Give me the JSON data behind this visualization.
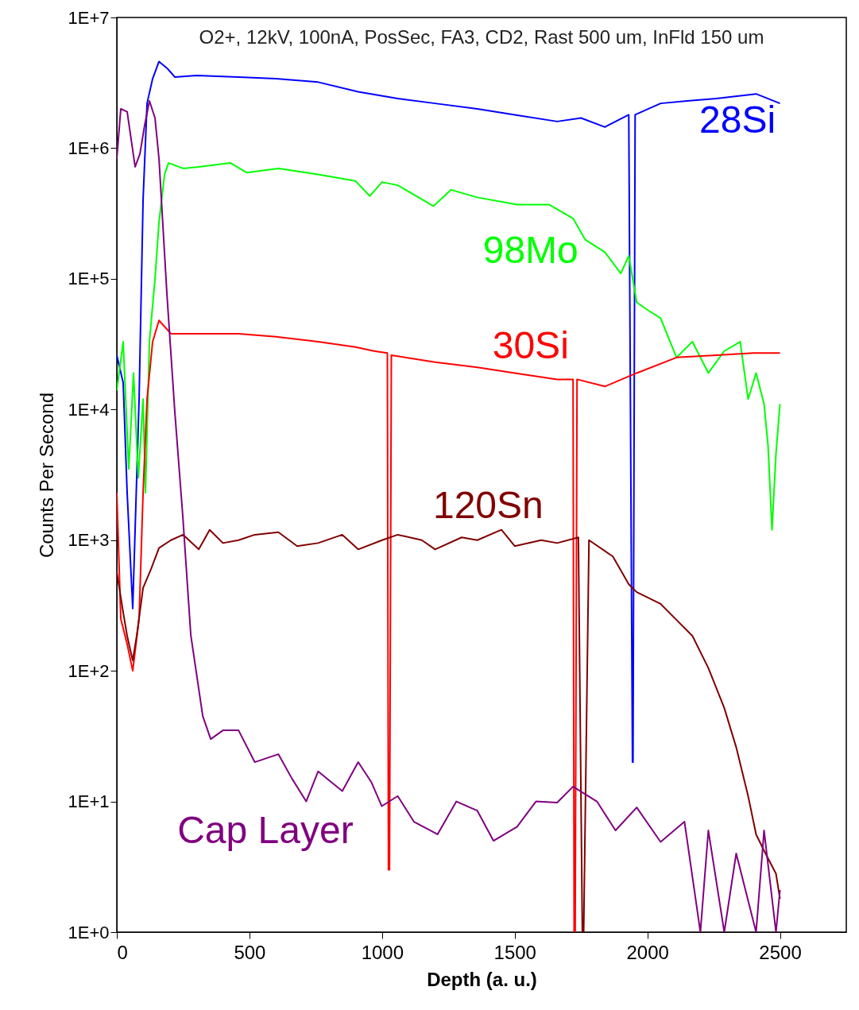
{
  "chart_data": {
    "type": "line",
    "xlabel": "Depth (a. u.)",
    "ylabel": "Counts Per Second",
    "annotations": [
      "O2+, 12kV, 100nA, PosSec, FA3, CD2, Rast 500 um, InFld 150 um"
    ],
    "xlim": [
      0,
      2750
    ],
    "xticks": [
      0,
      500,
      1000,
      1500,
      2000,
      2500
    ],
    "ylim": [
      1,
      10000000
    ],
    "yticks": [
      {
        "value": 1,
        "label": "1E+0"
      },
      {
        "value": 10,
        "label": "1E+1"
      },
      {
        "value": 100,
        "label": "1E+2"
      },
      {
        "value": 1000,
        "label": "1E+3"
      },
      {
        "value": 10000,
        "label": "1E+4"
      },
      {
        "value": 100000,
        "label": "1E+5"
      },
      {
        "value": 1000000,
        "label": "1E+6"
      },
      {
        "value": 10000000,
        "label": "1E+7"
      }
    ],
    "log": "y",
    "grid": false,
    "marker": "none",
    "line_style": "solid",
    "series": [
      {
        "name": "28Si",
        "color": "#0000ff",
        "x": [
          0,
          24,
          39,
          60,
          84,
          99,
          114,
          135,
          159,
          189,
          219,
          300,
          459,
          600,
          759,
          910,
          1059,
          1200,
          1359,
          1500,
          1660,
          1750,
          1840,
          1930,
          1944,
          1946,
          1954,
          2050,
          2150,
          2260,
          2410,
          2500
        ],
        "values": [
          26000,
          16000,
          2300,
          300,
          12000,
          400000,
          2200000,
          3400000,
          4600000,
          4100000,
          3500000,
          3600000,
          3500000,
          3400000,
          3200000,
          2700000,
          2400000,
          2200000,
          2000000,
          1800000,
          1600000,
          1700000,
          1450000,
          1800000,
          20,
          20,
          1800000,
          2200000,
          2300000,
          2400000,
          2600000,
          2200000
        ]
      },
      {
        "name": "98Mo",
        "color": "#00ff00",
        "x": [
          0,
          24,
          45,
          63,
          81,
          99,
          108,
          123,
          144,
          159,
          180,
          195,
          250,
          309,
          429,
          489,
          609,
          759,
          900,
          954,
          1000,
          1059,
          1194,
          1260,
          1359,
          1509,
          1629,
          1720,
          1765,
          1840,
          1900,
          1930,
          1960,
          2005,
          2050,
          2110,
          2170,
          2230,
          2290,
          2350,
          2380,
          2410,
          2440,
          2455,
          2470,
          2485,
          2500
        ],
        "values": [
          14000,
          33000,
          3500,
          19000,
          3000,
          12000,
          2300,
          33000,
          100000,
          270000,
          630000,
          770000,
          700000,
          720000,
          770000,
          650000,
          700000,
          630000,
          560000,
          430000,
          550000,
          520000,
          360000,
          480000,
          420000,
          370000,
          370000,
          290000,
          200000,
          160000,
          110000,
          150000,
          66000,
          57000,
          50000,
          25000,
          33000,
          19000,
          28000,
          33000,
          12000,
          19000,
          11000,
          5300,
          1200,
          4600,
          11000
        ]
      },
      {
        "name": "30Si",
        "color": "#ff0000",
        "x": [
          0,
          15,
          39,
          60,
          84,
          99,
          114,
          135,
          159,
          204,
          300,
          459,
          600,
          759,
          900,
          969,
          1020,
          1024,
          1028,
          1035,
          1200,
          1359,
          1500,
          1660,
          1720,
          1724,
          1728,
          1735,
          1840,
          1960,
          2110,
          2260,
          2400,
          2500
        ],
        "values": [
          2300,
          250,
          160,
          100,
          250,
          2300,
          12000,
          33000,
          48000,
          38000,
          38000,
          38000,
          36000,
          33000,
          30000,
          28000,
          27000,
          3,
          3,
          26000,
          23000,
          21000,
          19000,
          17000,
          17000,
          1,
          1,
          17000,
          15000,
          19000,
          25000,
          26000,
          27000,
          27000
        ]
      },
      {
        "name": "120Sn",
        "color": "#800000",
        "x": [
          0,
          24,
          39,
          60,
          75,
          99,
          129,
          159,
          204,
          250,
          309,
          350,
          400,
          459,
          520,
          609,
          680,
          759,
          850,
          910,
          1000,
          1059,
          1150,
          1200,
          1300,
          1359,
          1450,
          1500,
          1600,
          1660,
          1740,
          1755,
          1760,
          1780,
          1870,
          1930,
          1960,
          2050,
          2110,
          2170,
          2230,
          2290,
          2335,
          2380,
          2410,
          2440,
          2485,
          2500
        ],
        "values": [
          570,
          280,
          185,
          120,
          185,
          430,
          600,
          870,
          1000,
          1100,
          850,
          1200,
          950,
          1000,
          1100,
          1150,
          900,
          950,
          1100,
          850,
          1000,
          1100,
          1000,
          850,
          1050,
          1000,
          1200,
          900,
          1000,
          950,
          1050,
          1,
          1,
          1000,
          750,
          460,
          400,
          325,
          245,
          185,
          105,
          52,
          26,
          11,
          5.6,
          4.2,
          2.8,
          1.8
        ]
      },
      {
        "name": "Cap Layer",
        "color": "#800080",
        "x": [
          0,
          15,
          39,
          69,
          87,
          105,
          123,
          144,
          159,
          189,
          219,
          249,
          279,
          324,
          354,
          400,
          459,
          520,
          609,
          660,
          714,
          759,
          850,
          910,
          960,
          999,
          1059,
          1120,
          1209,
          1280,
          1359,
          1420,
          1509,
          1580,
          1660,
          1720,
          1810,
          1880,
          1960,
          2050,
          2140,
          2200,
          2230,
          2290,
          2335,
          2410,
          2440,
          2485,
          2500
        ],
        "values": [
          830000,
          2000000,
          1900000,
          720000,
          900000,
          1500000,
          2300000,
          1700000,
          830000,
          76000,
          9400,
          1500,
          187,
          45,
          30,
          35,
          35,
          20,
          23,
          15,
          10,
          17,
          12,
          20,
          14,
          9.2,
          11,
          7,
          5.6,
          10,
          8.5,
          5,
          6.4,
          10,
          9.8,
          13,
          10,
          6,
          9,
          4.9,
          7,
          1,
          6,
          1,
          4,
          1,
          6,
          1,
          2.1
        ]
      }
    ]
  }
}
